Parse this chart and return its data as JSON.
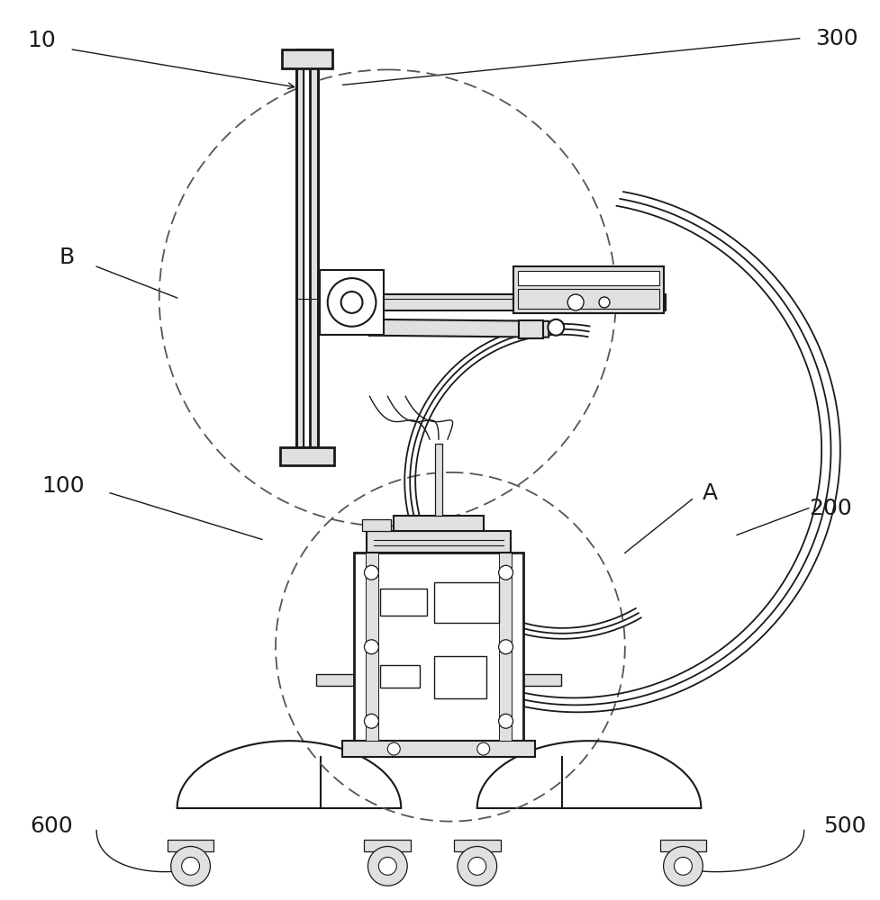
{
  "bg_color": "#ffffff",
  "line_color": "#1a1a1a",
  "light_gray": "#e0e0e0",
  "dashed_color": "#555555",
  "figsize": [
    9.77,
    10.0
  ],
  "dpi": 100
}
